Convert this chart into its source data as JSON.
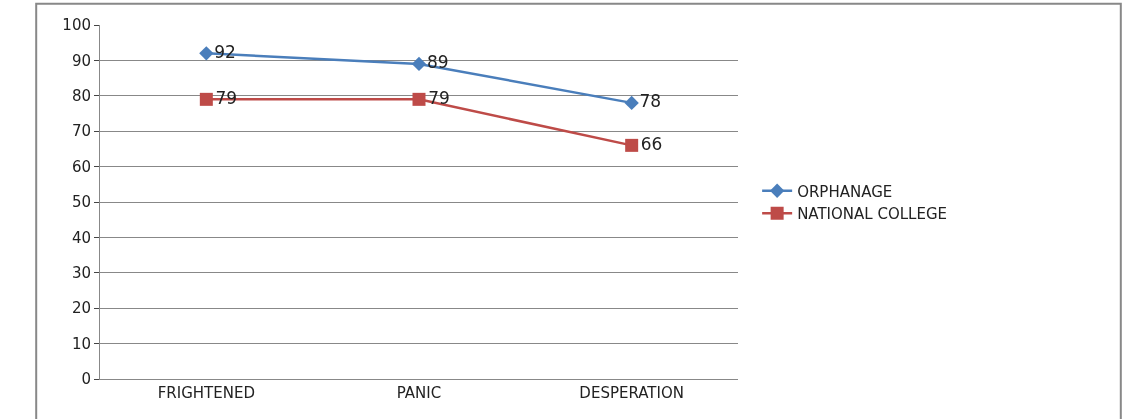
{
  "chart_data": {
    "type": "line",
    "categories": [
      "FRIGHTENED",
      "PANIC",
      "DESPERATION"
    ],
    "series": [
      {
        "name": "ORPHANAGE",
        "color": "#4a7ebb",
        "values": [
          92,
          89,
          78
        ],
        "marker": "diamond"
      },
      {
        "name": "NATIONAL COLLEGE",
        "color": "#be4b48",
        "values": [
          79,
          79,
          66
        ],
        "marker": "square"
      }
    ],
    "ylim": [
      0,
      100
    ],
    "yticks": [
      0,
      10,
      20,
      30,
      40,
      50,
      60,
      70,
      80,
      90,
      100
    ],
    "grid": "y",
    "legend": "right",
    "data_labels": true
  }
}
